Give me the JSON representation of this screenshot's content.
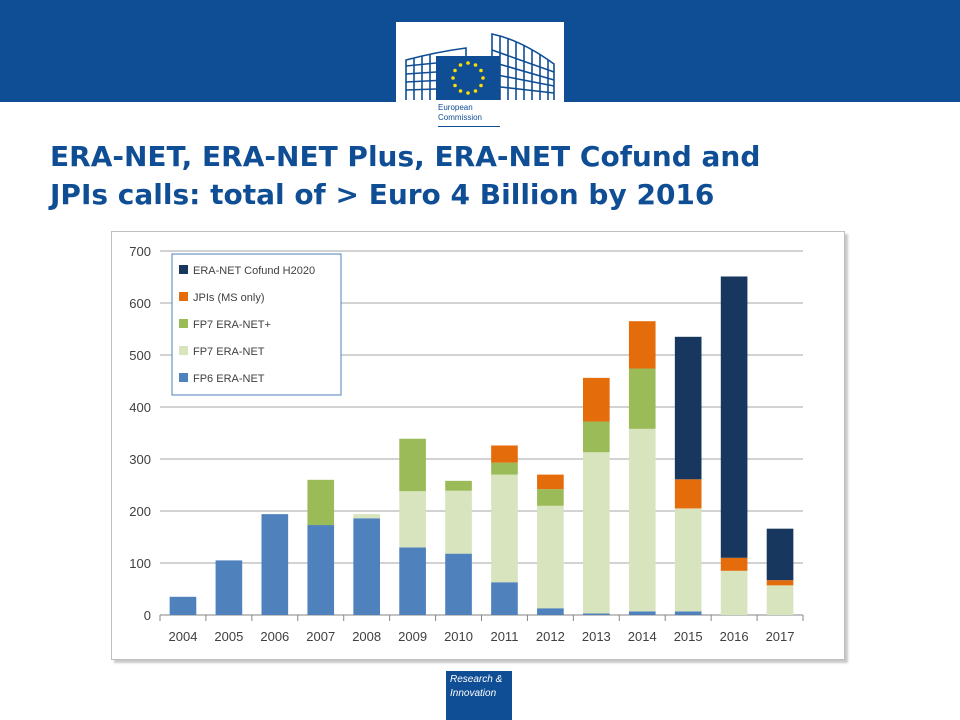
{
  "header": {
    "logo_line1": "European",
    "logo_line2": "Commission"
  },
  "title": {
    "line1": "ERA-NET, ERA-NET Plus, ERA-NET Cofund and",
    "line2": "JPIs calls: total of > Euro 4 Billion by 2016"
  },
  "footer": {
    "badge_line1": "Research &",
    "badge_line2": "Innovation"
  },
  "colors": {
    "brand_blue": "#0f4e95",
    "fp6_era_net": "#4f81bd",
    "fp7_era_net": "#d7e4bd",
    "fp7_era_net_plus": "#9bbb59",
    "jpis": "#e46c0a",
    "era_net_cofund_h2020": "#17375e"
  },
  "chart_data": {
    "type": "bar",
    "stacked": true,
    "categories": [
      "2004",
      "2005",
      "2006",
      "2007",
      "2008",
      "2009",
      "2010",
      "2011",
      "2012",
      "2013",
      "2014",
      "2015",
      "2016",
      "2017"
    ],
    "ylim": [
      0,
      700
    ],
    "yticks": [
      0,
      100,
      200,
      300,
      400,
      500,
      600,
      700
    ],
    "grid": true,
    "legend_position": "top-left",
    "series": [
      {
        "name": "FP6 ERA-NET",
        "color": "#4f81bd",
        "values": [
          35,
          105,
          194,
          173,
          186,
          130,
          118,
          63,
          13,
          3,
          7,
          7,
          0,
          0
        ]
      },
      {
        "name": "FP7 ERA-NET",
        "color": "#d7e4bd",
        "values": [
          0,
          0,
          0,
          0,
          8,
          108,
          121,
          207,
          197,
          310,
          351,
          198,
          85,
          57
        ]
      },
      {
        "name": "FP7 ERA-NET+",
        "color": "#9bbb59",
        "values": [
          0,
          0,
          0,
          87,
          0,
          101,
          19,
          23,
          32,
          59,
          116,
          0,
          0,
          0
        ]
      },
      {
        "name": "JPIs (MS only)",
        "color": "#e46c0a",
        "values": [
          0,
          0,
          0,
          0,
          0,
          0,
          0,
          33,
          28,
          84,
          91,
          56,
          25,
          10
        ]
      },
      {
        "name": "ERA-NET Cofund H2020",
        "color": "#17375e",
        "values": [
          0,
          0,
          0,
          0,
          0,
          0,
          0,
          0,
          0,
          0,
          0,
          274,
          541,
          99
        ]
      }
    ],
    "legend_order": [
      "ERA-NET Cofund H2020",
      "JPIs (MS only)",
      "FP7 ERA-NET+",
      "FP7 ERA-NET",
      "FP6 ERA-NET"
    ]
  }
}
